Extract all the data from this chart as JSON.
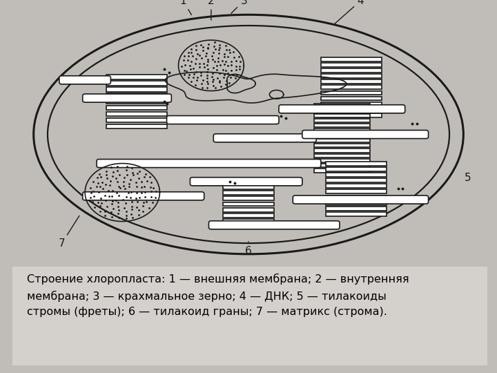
{
  "bg_color": "#c0bdb8",
  "card_color": "#ffffff",
  "caption_bg": "#d4d0cc",
  "caption_text": "Строение хлоропласта: 1 — внешняя мембрана; 2 — внутренняя\nмембрана; 3 — крахмальное зерно; 4 — ДНК; 5 — тилакоиды\nстромы (фреты); 6 — тилакоид граны; 7 — матрикс (строма).",
  "caption_fontsize": 11.5,
  "label_fontsize": 11,
  "line_color": "#1a1a1a",
  "lw_outer": 2.2,
  "lw_inner": 1.6,
  "lw_struct": 1.2
}
